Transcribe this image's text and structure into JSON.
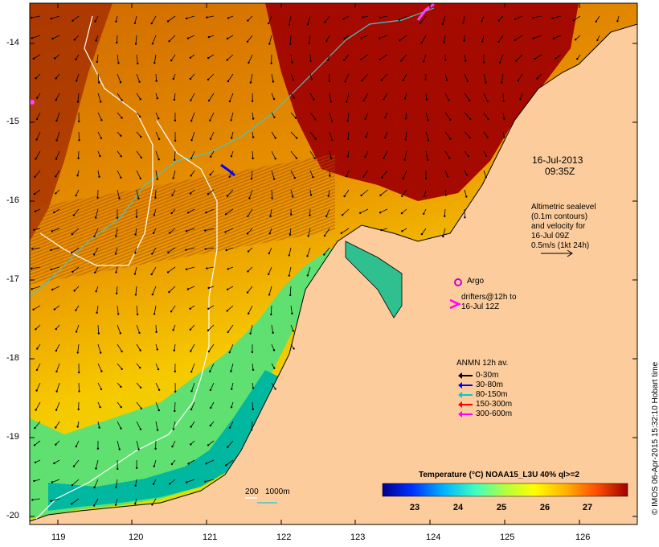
{
  "x_axis": {
    "ticks": [
      "119",
      "120",
      "121",
      "122",
      "123",
      "124",
      "125",
      "126"
    ]
  },
  "y_axis": {
    "ticks": [
      "-14",
      "-15",
      "-16",
      "-17",
      "-18",
      "-19",
      "-20"
    ]
  },
  "timestamp": {
    "line1": "16-Jul-2013",
    "line2": "09:35Z"
  },
  "altimetry_note": [
    "Altimetric sealevel",
    "(0.1m contours)",
    "and velocity for",
    "16-Jul 09Z",
    "0.5m/s (1kt 24h)"
  ],
  "argo_label": "Argo",
  "drifters_label": {
    "line1": "drifters@12h to",
    "line2": "16-Jul 12Z"
  },
  "anmn_legend": {
    "title": "ANMN 12h av.",
    "items": [
      {
        "label": "0-30m",
        "color": "#000000"
      },
      {
        "label": "30-80m",
        "color": "#0000ff"
      },
      {
        "label": "80-150m",
        "color": "#00cccc"
      },
      {
        "label": "150-300m",
        "color": "#ff0000"
      },
      {
        "label": "300-600m",
        "color": "#ff00ff"
      }
    ]
  },
  "contour_legend": {
    "a": "200",
    "b": "1000m"
  },
  "colorbar": {
    "title": "Temperature (°C) NOAA15_L3U 40% ql>=2",
    "ticks": [
      "23",
      "24",
      "25",
      "26",
      "27"
    ]
  },
  "credit": "© IMOS 06-Apr-2015 15:32:10 Hobart time",
  "colors": {
    "land": "#fccc9c",
    "warm": "#a50a00",
    "argo": "#cc00cc",
    "isobath_200": "#40c8c8",
    "isobath_1000": "#ffffff"
  }
}
